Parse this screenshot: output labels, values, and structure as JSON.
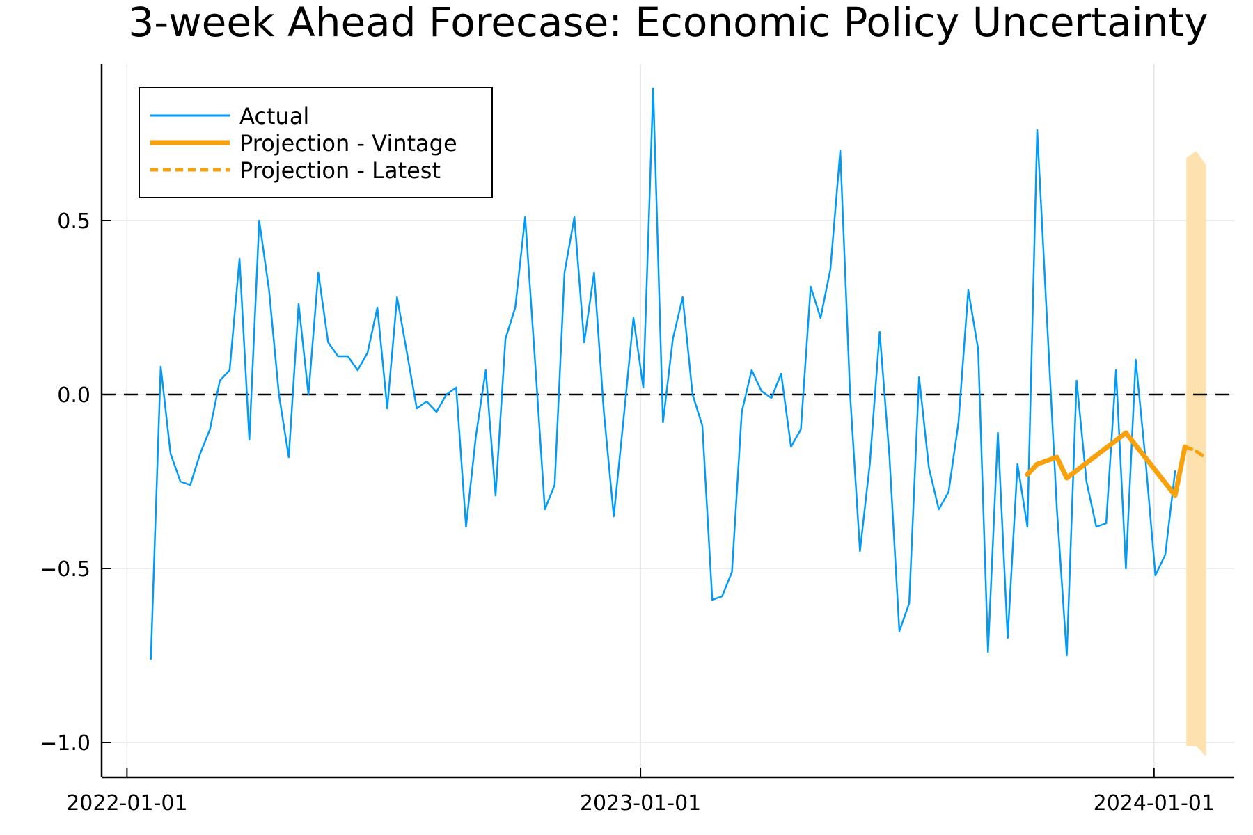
{
  "chart_data": {
    "type": "line",
    "title": "3-week Ahead Forecase: Economic Policy Uncertainty",
    "xlabel": "",
    "ylabel": "",
    "xlim": [
      "2021-12-14",
      "2024-02-27"
    ],
    "ylim": [
      -1.1,
      0.95
    ],
    "x_ticks": [
      "2022-01-01",
      "2023-01-01",
      "2024-01-01"
    ],
    "y_ticks": [
      -1.0,
      -0.5,
      0.0,
      0.5
    ],
    "y_tick_labels": [
      "−1.0",
      "−0.5",
      "0.0",
      "0.5"
    ],
    "grid": true,
    "legend_position": "top-left",
    "reference_line": {
      "y": 0.0,
      "style": "dashed",
      "color": "#000000"
    },
    "colors": {
      "actual": "#009af9",
      "projection": "#f9a10d",
      "band": "#fde2b0"
    },
    "series": [
      {
        "name": "Actual",
        "style": "solid",
        "x": [
          "2022-01-18",
          "2022-01-25",
          "2022-02-01",
          "2022-02-08",
          "2022-02-15",
          "2022-02-22",
          "2022-03-01",
          "2022-03-08",
          "2022-03-15",
          "2022-03-22",
          "2022-03-29",
          "2022-04-05",
          "2022-04-12",
          "2022-04-19",
          "2022-04-26",
          "2022-05-03",
          "2022-05-10",
          "2022-05-17",
          "2022-05-24",
          "2022-05-31",
          "2022-06-07",
          "2022-06-14",
          "2022-06-21",
          "2022-06-28",
          "2022-07-05",
          "2022-07-12",
          "2022-07-19",
          "2022-07-26",
          "2022-08-02",
          "2022-08-09",
          "2022-08-16",
          "2022-08-23",
          "2022-08-30",
          "2022-09-06",
          "2022-09-13",
          "2022-09-20",
          "2022-09-27",
          "2022-10-04",
          "2022-10-11",
          "2022-10-18",
          "2022-10-25",
          "2022-11-01",
          "2022-11-08",
          "2022-11-15",
          "2022-11-22",
          "2022-11-29",
          "2022-12-06",
          "2022-12-13",
          "2022-12-20",
          "2022-12-27",
          "2023-01-03",
          "2023-01-10",
          "2023-01-17",
          "2023-01-24",
          "2023-01-31",
          "2023-02-07",
          "2023-02-14",
          "2023-02-21",
          "2023-02-28",
          "2023-03-07",
          "2023-03-14",
          "2023-03-21",
          "2023-03-28",
          "2023-04-04",
          "2023-04-11",
          "2023-04-18",
          "2023-04-25",
          "2023-05-02",
          "2023-05-09",
          "2023-05-16",
          "2023-05-23",
          "2023-05-30",
          "2023-06-06",
          "2023-06-13",
          "2023-06-20",
          "2023-06-27",
          "2023-07-04",
          "2023-07-11",
          "2023-07-18",
          "2023-07-25",
          "2023-08-01",
          "2023-08-08",
          "2023-08-15",
          "2023-08-22",
          "2023-08-29",
          "2023-09-05",
          "2023-09-12",
          "2023-09-19",
          "2023-09-26",
          "2023-10-03",
          "2023-10-10",
          "2023-10-17",
          "2023-10-24",
          "2023-10-31",
          "2023-11-07",
          "2023-11-14",
          "2023-11-21",
          "2023-11-28",
          "2023-12-05",
          "2023-12-12",
          "2023-12-19",
          "2023-12-26",
          "2024-01-02",
          "2024-01-09",
          "2024-01-16"
        ],
        "values": [
          -0.76,
          0.08,
          -0.17,
          -0.25,
          -0.26,
          -0.17,
          -0.1,
          0.04,
          0.07,
          0.39,
          -0.13,
          0.5,
          0.3,
          0.0,
          -0.18,
          0.26,
          0.0,
          0.35,
          0.15,
          0.11,
          0.11,
          0.07,
          0.12,
          0.25,
          -0.04,
          0.28,
          0.12,
          -0.04,
          -0.02,
          -0.05,
          0.0,
          0.02,
          -0.38,
          -0.12,
          0.07,
          -0.29,
          0.16,
          0.25,
          0.51,
          0.1,
          -0.33,
          -0.26,
          0.35,
          0.51,
          0.15,
          0.35,
          -0.05,
          -0.35,
          -0.07,
          0.22,
          0.02,
          0.88,
          -0.08,
          0.16,
          0.28,
          0.0,
          -0.09,
          -0.59,
          -0.58,
          -0.51,
          -0.05,
          0.07,
          0.01,
          -0.01,
          0.06,
          -0.15,
          -0.1,
          0.31,
          0.22,
          0.36,
          0.7,
          0.0,
          -0.45,
          -0.2,
          0.18,
          -0.18,
          -0.68,
          -0.6,
          0.05,
          -0.21,
          -0.33,
          -0.28,
          -0.08,
          0.3,
          0.13,
          -0.74,
          -0.11,
          -0.7,
          -0.2,
          -0.38,
          0.76,
          0.21,
          -0.33,
          -0.75,
          0.04,
          -0.25,
          -0.38,
          -0.37,
          0.07,
          -0.5,
          0.1,
          -0.19,
          -0.52,
          -0.46,
          -0.22
        ]
      },
      {
        "name": "Projection - Vintage",
        "style": "solid-thick",
        "x": [
          "2023-10-03",
          "2023-10-10",
          "2023-10-17",
          "2023-10-24",
          "2023-10-31",
          "2023-12-12",
          "2024-01-16",
          "2024-01-23"
        ],
        "values": [
          -0.23,
          -0.2,
          -0.19,
          -0.18,
          -0.24,
          -0.11,
          -0.29,
          -0.15
        ]
      },
      {
        "name": "Projection - Latest",
        "style": "dashed",
        "x": [
          "2024-01-23",
          "2024-01-30",
          "2024-02-06"
        ],
        "values": [
          -0.15,
          -0.16,
          -0.18
        ]
      }
    ],
    "band": {
      "x": [
        "2024-01-24",
        "2024-01-31",
        "2024-02-07"
      ],
      "upper": [
        0.68,
        0.7,
        0.66
      ],
      "lower": [
        -1.01,
        -1.01,
        -1.04
      ]
    }
  }
}
